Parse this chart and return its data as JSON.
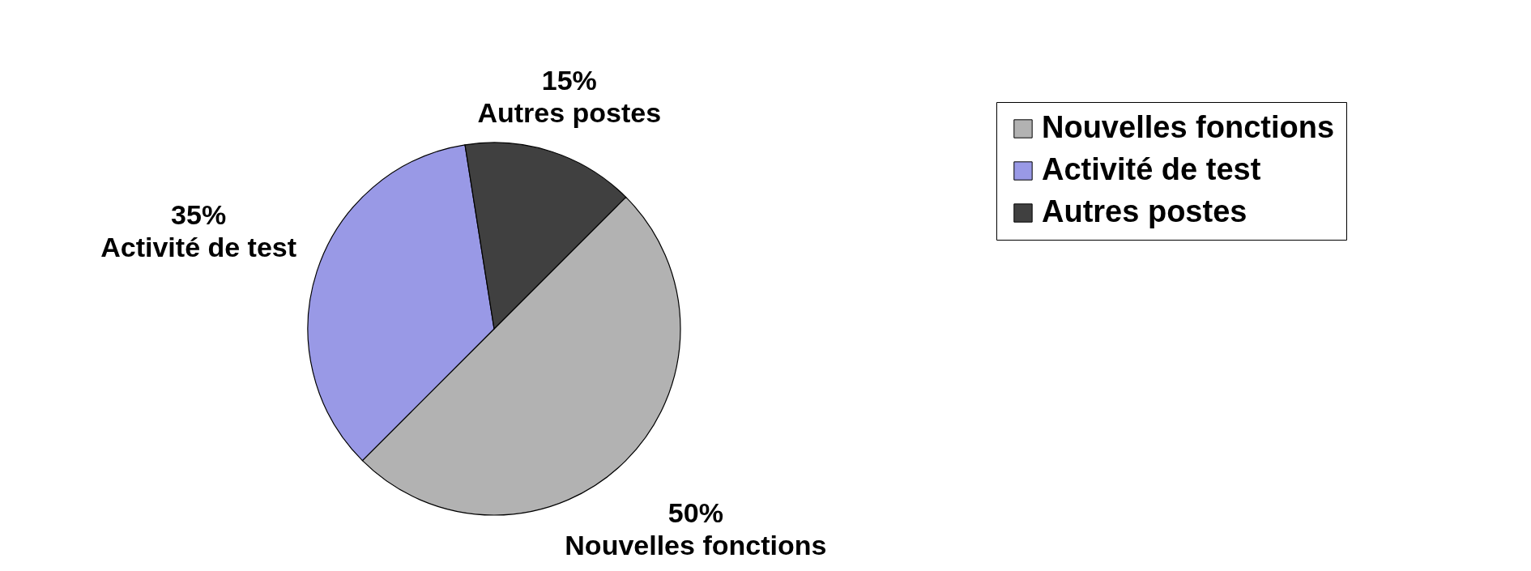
{
  "chart_data": {
    "type": "pie",
    "categories": [
      "Nouvelles fonctions",
      "Activité de test",
      "Autres postes"
    ],
    "values": [
      50,
      35,
      15
    ],
    "colors": [
      "#b2b2b2",
      "#9999e6",
      "#404040"
    ],
    "value_labels": [
      "50%",
      "35%",
      "15%"
    ],
    "legend": "right"
  }
}
